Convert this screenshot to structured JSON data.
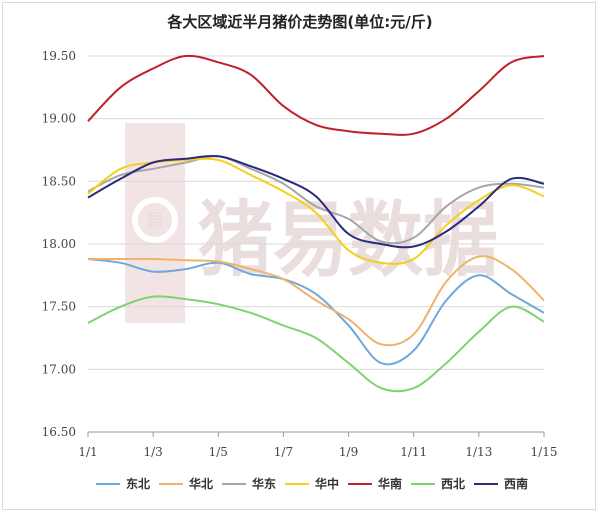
{
  "chart_data": {
    "type": "line",
    "title": "各大区域近半月猪价走势图(单位:元/斤)",
    "xlabel": "",
    "ylabel": "",
    "x_ticks": [
      "1/1",
      "1/3",
      "1/5",
      "1/7",
      "1/9",
      "1/11",
      "1/13",
      "1/15"
    ],
    "y_ticks": [
      "16.50",
      "17.00",
      "17.50",
      "18.00",
      "18.50",
      "19.00",
      "19.50"
    ],
    "ylim": [
      16.5,
      19.5
    ],
    "x": [
      1,
      2,
      3,
      4,
      5,
      6,
      7,
      8,
      9,
      10,
      11,
      12,
      13,
      14,
      15
    ],
    "grid": "horizontal",
    "legend_position": "bottom",
    "series": [
      {
        "name": "东北",
        "color": "#6fa8dc",
        "values": [
          17.88,
          17.85,
          17.78,
          17.8,
          17.85,
          17.76,
          17.72,
          17.6,
          17.35,
          17.05,
          17.15,
          17.55,
          17.75,
          17.6,
          17.45
        ]
      },
      {
        "name": "华北",
        "color": "#f0b26b",
        "values": [
          17.88,
          17.88,
          17.88,
          17.87,
          17.86,
          17.8,
          17.72,
          17.55,
          17.4,
          17.2,
          17.28,
          17.7,
          17.9,
          17.8,
          17.55
        ]
      },
      {
        "name": "华东",
        "color": "#a6a6a6",
        "values": [
          18.42,
          18.55,
          18.6,
          18.65,
          18.7,
          18.6,
          18.48,
          18.3,
          18.2,
          18.02,
          18.05,
          18.3,
          18.45,
          18.48,
          18.45
        ]
      },
      {
        "name": "华中",
        "color": "#f2d01c",
        "values": [
          18.4,
          18.6,
          18.65,
          18.67,
          18.67,
          18.55,
          18.42,
          18.25,
          17.95,
          17.85,
          17.88,
          18.15,
          18.35,
          18.47,
          18.38
        ]
      },
      {
        "name": "华南",
        "color": "#c0202a",
        "values": [
          18.98,
          19.25,
          19.4,
          19.5,
          19.45,
          19.35,
          19.1,
          18.95,
          18.9,
          18.88,
          18.88,
          19.0,
          19.22,
          19.45,
          19.5
        ]
      },
      {
        "name": "西北",
        "color": "#7ed36f",
        "values": [
          17.37,
          17.5,
          17.58,
          17.56,
          17.52,
          17.45,
          17.35,
          17.25,
          17.05,
          16.85,
          16.85,
          17.05,
          17.3,
          17.5,
          17.38
        ]
      },
      {
        "name": "西南",
        "color": "#2b2a7c",
        "values": [
          18.37,
          18.52,
          18.65,
          18.68,
          18.7,
          18.62,
          18.52,
          18.38,
          18.08,
          18.0,
          17.98,
          18.1,
          18.3,
          18.52,
          18.48
        ]
      }
    ]
  },
  "watermark": {
    "text": "猪易数据",
    "logo_text": "易",
    "icon": "pig-logo-icon",
    "color": "#e6c9c9"
  }
}
